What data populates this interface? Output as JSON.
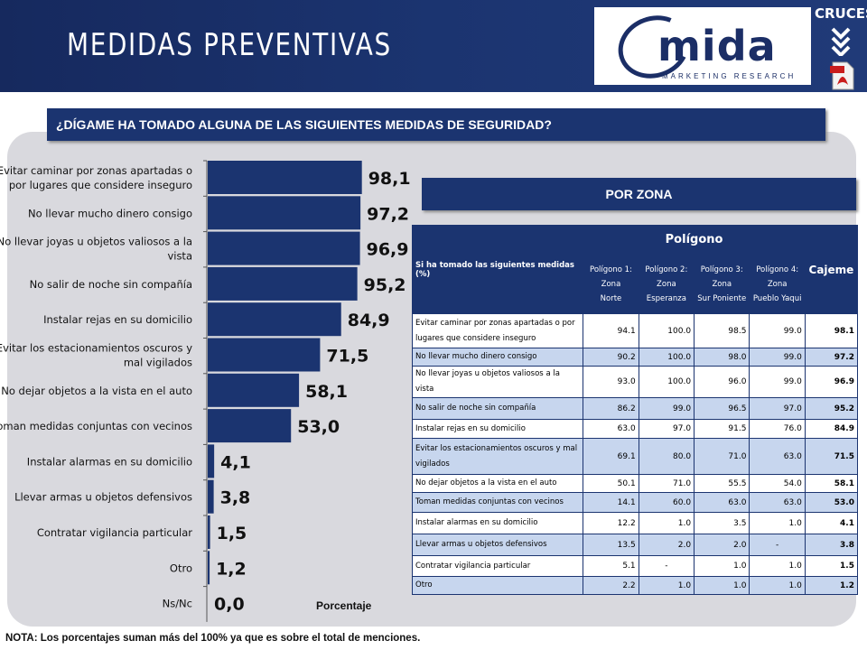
{
  "header": {
    "title": "MEDIDAS PREVENTIVAS",
    "logo_name": "mida",
    "logo_sub": "MARKETING RESEARCH",
    "cruces": "CRUCES"
  },
  "question": "¿DÍGAME HA TOMADO ALGUNA DE LAS SIGUIENTES MEDIDAS DE SEGURIDAD?",
  "chart_data": {
    "type": "bar",
    "orientation": "horizontal",
    "categories": [
      [
        "Evitar caminar por zonas apartadas o",
        "por lugares que considere inseguro"
      ],
      [
        "No llevar mucho dinero consigo"
      ],
      [
        "No llevar joyas u objetos valiosos a la",
        "vista"
      ],
      [
        "No salir de noche sin compañía"
      ],
      [
        "Instalar rejas en su domicilio"
      ],
      [
        "Evitar los estacionamientos oscuros y",
        "mal vigilados"
      ],
      [
        "No dejar objetos a la vista en el auto"
      ],
      [
        "Toman medidas conjuntas con vecinos"
      ],
      [
        "Instalar alarmas en su domicilio"
      ],
      [
        "Llevar armas u objetos defensivos"
      ],
      [
        "Contratar vigilancia particular"
      ],
      [
        "Otro"
      ],
      [
        "Ns/Nc"
      ]
    ],
    "values": [
      98.1,
      97.2,
      96.9,
      95.2,
      84.9,
      71.5,
      58.1,
      53.0,
      4.1,
      3.8,
      1.5,
      1.2,
      0.0
    ],
    "value_labels": [
      "98,1",
      "97,2",
      "96,9",
      "95,2",
      "84,9",
      "71,5",
      "58,1",
      "53,0",
      "4,1",
      "3,8",
      "1,5",
      "1,2",
      "0,0"
    ],
    "xlabel": "Porcentaje",
    "xlim": [
      0,
      100
    ],
    "bar_color": "#1b3470"
  },
  "zona": {
    "title": "POR ZONA",
    "row_header": "Si ha tomado las siguientes medidas (%)",
    "group_header": "Polígono",
    "columns": [
      [
        "Polígono 1: Zona",
        "Norte"
      ],
      [
        "Polígono 2: Zona",
        "Esperanza"
      ],
      [
        "Polígono 3: Zona",
        "Sur Poniente"
      ],
      [
        "Polígono 4: Zona",
        "Pueblo Yaqui"
      ]
    ],
    "total_header": "Cajeme",
    "rows": [
      {
        "label": [
          "Evitar caminar por zonas apartadas o por",
          "lugares que considere inseguro"
        ],
        "values": [
          "94.1",
          "100.0",
          "98.5",
          "99.0"
        ],
        "total": "98.1"
      },
      {
        "label": [
          "No llevar mucho dinero consigo"
        ],
        "values": [
          "90.2",
          "100.0",
          "98.0",
          "99.0"
        ],
        "total": "97.2"
      },
      {
        "label": [
          "No llevar joyas u objetos valiosos a la vista"
        ],
        "values": [
          "93.0",
          "100.0",
          "96.0",
          "99.0"
        ],
        "total": "96.9"
      },
      {
        "label": [
          "No salir de noche sin compañía"
        ],
        "values": [
          "86.2",
          "99.0",
          "96.5",
          "97.0"
        ],
        "total": "95.2"
      },
      {
        "label": [
          "Instalar rejas en su domicilio"
        ],
        "values": [
          "63.0",
          "97.0",
          "91.5",
          "76.0"
        ],
        "total": "84.9"
      },
      {
        "label": [
          "Evitar los estacionamientos oscuros y mal",
          "vigilados"
        ],
        "values": [
          "69.1",
          "80.0",
          "71.0",
          "63.0"
        ],
        "total": "71.5"
      },
      {
        "label": [
          "No dejar objetos a la vista en el auto"
        ],
        "values": [
          "50.1",
          "71.0",
          "55.5",
          "54.0"
        ],
        "total": "58.1"
      },
      {
        "label": [
          "Toman medidas conjuntas con vecinos"
        ],
        "values": [
          "14.1",
          "60.0",
          "63.0",
          "63.0"
        ],
        "total": "53.0"
      },
      {
        "label": [
          "Instalar alarmas en su domicilio"
        ],
        "values": [
          "12.2",
          "1.0",
          "3.5",
          "1.0"
        ],
        "total": "4.1"
      },
      {
        "label": [
          "Llevar armas u objetos defensivos"
        ],
        "values": [
          "13.5",
          "2.0",
          "2.0",
          "-"
        ],
        "total": "3.8"
      },
      {
        "label": [
          "Contratar vigilancia particular"
        ],
        "values": [
          "5.1",
          "-",
          "1.0",
          "1.0"
        ],
        "total": "1.5"
      },
      {
        "label": [
          "Otro"
        ],
        "values": [
          "2.2",
          "1.0",
          "1.0",
          "1.0"
        ],
        "total": "1.2"
      }
    ]
  },
  "note": "NOTA: Los porcentajes suman más del 100% ya que es sobre el total de menciones."
}
